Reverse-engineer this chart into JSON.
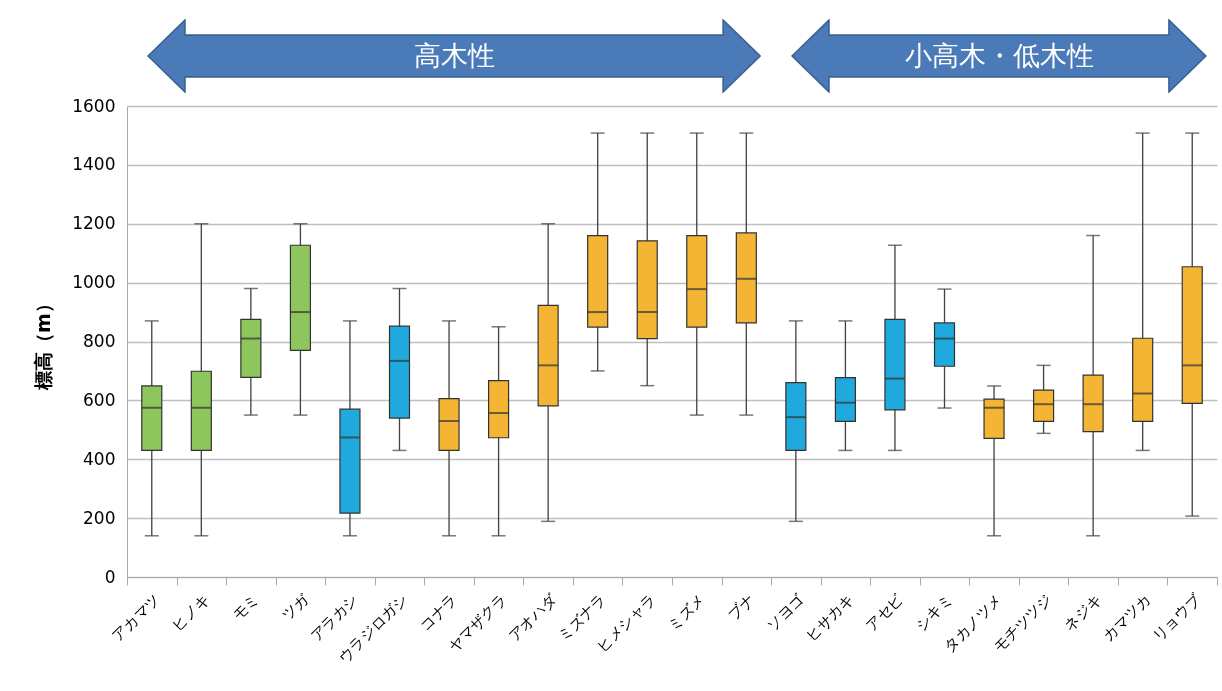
{
  "chart_data": {
    "type": "box",
    "ylabel": "標高（m）",
    "categories": [
      "アカマツ",
      "ヒノキ",
      "モミ",
      "ツガ",
      "アラカシ",
      "ウラジロガシ",
      "コナラ",
      "ヤマザクラ",
      "アオハダ",
      "ミズナラ",
      "ヒメシャラ",
      "ミズメ",
      "ブナ",
      "ソヨゴ",
      "ヒサカキ",
      "アセビ",
      "シキミ",
      "タカノツメ",
      "モチツツジ",
      "ネジキ",
      "カマツカ",
      "リョウブ"
    ],
    "boxes": [
      {
        "low": 140,
        "q1": 430,
        "median": 575,
        "q3": 649,
        "high": 870
      },
      {
        "low": 140,
        "q1": 430,
        "median": 575,
        "q3": 699,
        "high": 1200
      },
      {
        "low": 550,
        "q1": 678,
        "median": 810,
        "q3": 875,
        "high": 980
      },
      {
        "low": 550,
        "q1": 770,
        "median": 900,
        "q3": 1127,
        "high": 1200
      },
      {
        "low": 140,
        "q1": 217,
        "median": 474,
        "q3": 570,
        "high": 870
      },
      {
        "low": 430,
        "q1": 540,
        "median": 734,
        "q3": 852,
        "high": 980
      },
      {
        "low": 140,
        "q1": 430,
        "median": 530,
        "q3": 606,
        "high": 870
      },
      {
        "low": 140,
        "q1": 473,
        "median": 557,
        "q3": 667,
        "high": 850
      },
      {
        "low": 189,
        "q1": 581,
        "median": 719,
        "q3": 923,
        "high": 1200
      },
      {
        "low": 700,
        "q1": 849,
        "median": 900,
        "q3": 1160,
        "high": 1508
      },
      {
        "low": 650,
        "q1": 810,
        "median": 900,
        "q3": 1142,
        "high": 1508
      },
      {
        "low": 550,
        "q1": 849,
        "median": 978,
        "q3": 1160,
        "high": 1508
      },
      {
        "low": 550,
        "q1": 863,
        "median": 1013,
        "q3": 1169,
        "high": 1508
      },
      {
        "low": 189,
        "q1": 430,
        "median": 543,
        "q3": 660,
        "high": 870
      },
      {
        "low": 430,
        "q1": 529,
        "median": 592,
        "q3": 677,
        "high": 870
      },
      {
        "low": 430,
        "q1": 568,
        "median": 674,
        "q3": 875,
        "high": 1127
      },
      {
        "low": 574,
        "q1": 716,
        "median": 810,
        "q3": 863,
        "high": 978
      },
      {
        "low": 140,
        "q1": 471,
        "median": 575,
        "q3": 604,
        "high": 649
      },
      {
        "low": 488,
        "q1": 529,
        "median": 587,
        "q3": 635,
        "high": 719
      },
      {
        "low": 140,
        "q1": 494,
        "median": 587,
        "q3": 686,
        "high": 1160
      },
      {
        "low": 430,
        "q1": 529,
        "median": 623,
        "q3": 811,
        "high": 1508
      },
      {
        "low": 207,
        "q1": 590,
        "median": 719,
        "q3": 1054,
        "high": 1508
      }
    ],
    "colors": [
      "#8cc65c",
      "#8cc65c",
      "#8cc65c",
      "#8cc65c",
      "#1fa9dd",
      "#1fa9dd",
      "#f3b533",
      "#f3b533",
      "#f3b533",
      "#f3b533",
      "#f3b533",
      "#f3b533",
      "#f3b533",
      "#1fa9dd",
      "#1fa9dd",
      "#1fa9dd",
      "#1fa9dd",
      "#f3b533",
      "#f3b533",
      "#f3b533",
      "#f3b533",
      "#f3b533"
    ],
    "ylim": [
      0,
      1600
    ],
    "yticks": [
      0,
      200,
      400,
      600,
      800,
      1000,
      1200,
      1400,
      1600
    ],
    "grid": "y",
    "annotations": [
      "高木性",
      "小高木・低木性"
    ]
  }
}
